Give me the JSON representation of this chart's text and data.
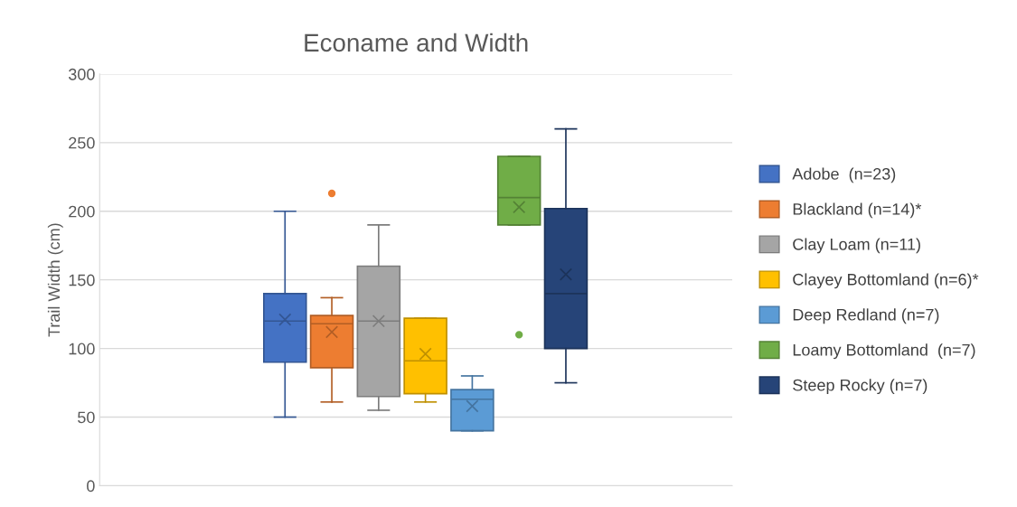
{
  "chart_data": {
    "type": "box",
    "title": "Econame and Width",
    "ylabel": "Trail Width (cm)",
    "categories": [
      null
    ],
    "series": [
      {
        "name": "Adobe  (n=23)",
        "color": "#4472c4",
        "boxes": [
          {
            "low": 50,
            "q1": 90,
            "median": 120,
            "q3": 140,
            "high": 200,
            "mean": 121
          }
        ]
      },
      {
        "name": "Blackland (n=14)*",
        "color": "#ed7d31",
        "boxes": [
          {
            "low": 61,
            "q1": 86,
            "median": 118,
            "q3": 124,
            "high": 137,
            "mean": 112,
            "outliers": [
              213
            ]
          }
        ]
      },
      {
        "name": "Clay Loam (n=11)",
        "color": "#a5a5a5",
        "boxes": [
          {
            "low": 55,
            "q1": 65,
            "median": 120,
            "q3": 160,
            "high": 190,
            "mean": 120
          }
        ]
      },
      {
        "name": "Clayey Bottomland (n=6)*",
        "color": "#ffc000",
        "boxes": [
          {
            "low": 61,
            "q1": 67,
            "median": 91,
            "q3": 122,
            "high": 122,
            "mean": 96
          }
        ]
      },
      {
        "name": "Deep Redland (n=7)",
        "color": "#5b9bd5",
        "boxes": [
          {
            "low": 40,
            "q1": 40,
            "median": 63,
            "q3": 70,
            "high": 80,
            "mean": 58
          }
        ]
      },
      {
        "name": "Loamy Bottomland  (n=7)",
        "color": "#70ad47",
        "boxes": [
          {
            "low": 190,
            "q1": 190,
            "median": 210,
            "q3": 240,
            "high": 240,
            "mean": 203,
            "outliers": [
              110
            ]
          }
        ]
      },
      {
        "name": "Steep Rocky (n=7)",
        "color": "#264478",
        "boxes": [
          {
            "low": 75,
            "q1": 100,
            "median": 140,
            "q3": 202,
            "high": 260,
            "mean": 154
          }
        ]
      }
    ],
    "ylim": [
      0,
      300
    ],
    "yticks": [
      0,
      50,
      100,
      150,
      200,
      250,
      300
    ],
    "grid": "y",
    "legend": "right"
  }
}
